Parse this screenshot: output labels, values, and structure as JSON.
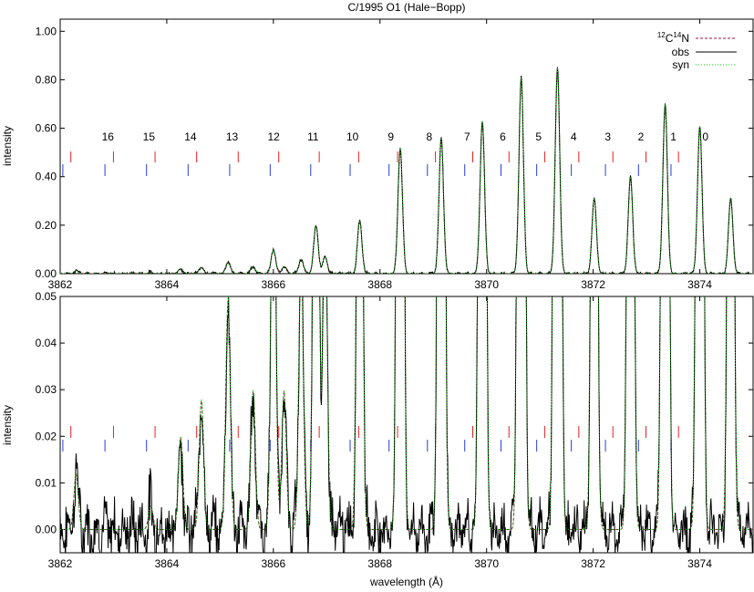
{
  "title": "C/1995 O1 (Hale−Bopp)",
  "legend": {
    "position": "top-right",
    "entries": [
      {
        "label_parts": [
          "12",
          "C",
          "14",
          "N"
        ],
        "color": "#8b1a3c",
        "style": "dashed"
      },
      {
        "label": "obs",
        "color": "#000000",
        "style": "solid"
      },
      {
        "label": "syn",
        "color": "#00cc00",
        "style": "dotted"
      }
    ]
  },
  "chart_data": [
    {
      "type": "line",
      "panel": "top",
      "xlabel": "",
      "ylabel": "intensity",
      "xlim": [
        3862,
        3875
      ],
      "ylim": [
        0,
        1.05
      ],
      "xticks": [
        "3862",
        "3864",
        "3866",
        "3868",
        "3870",
        "3872",
        "3874"
      ],
      "yticks": [
        "0.00",
        "0.20",
        "0.40",
        "0.60",
        "0.80",
        "1.00"
      ],
      "grid": false,
      "line_labels": [
        {
          "text": "16",
          "x": 3862.45
        },
        {
          "text": "15",
          "x": 3863.22
        },
        {
          "text": "14",
          "x": 3864.0
        },
        {
          "text": "13",
          "x": 3864.78
        },
        {
          "text": "12",
          "x": 3865.56
        },
        {
          "text": "11",
          "x": 3866.3
        },
        {
          "text": "10",
          "x": 3867.04
        },
        {
          "text": "9",
          "x": 3867.76
        },
        {
          "text": "8",
          "x": 3868.48
        },
        {
          "text": "7",
          "x": 3869.19
        },
        {
          "text": "6",
          "x": 3869.86
        },
        {
          "text": "5",
          "x": 3870.53
        },
        {
          "text": "4",
          "x": 3871.19
        },
        {
          "text": "3",
          "x": 3871.83
        },
        {
          "text": "2",
          "x": 3872.45
        },
        {
          "text": "1",
          "x": 3873.06
        },
        {
          "text": "0",
          "x": 3873.66
        }
      ],
      "tick_marks": {
        "red": [
          3862.2,
          3863.0,
          3863.78,
          3864.56,
          3865.34,
          3866.1,
          3866.86,
          3867.6,
          3868.33,
          3869.04,
          3869.74,
          3870.42,
          3871.09,
          3871.73,
          3872.37,
          3872.99,
          3873.6
        ],
        "blue": [
          3862.05,
          3862.84,
          3863.62,
          3864.4,
          3865.18,
          3865.94,
          3866.7,
          3867.44,
          3868.17,
          3868.89,
          3869.59,
          3870.27,
          3870.94,
          3871.59,
          3872.23,
          3872.85,
          3873.46
        ]
      },
      "peaks": [
        {
          "x": 3862.3,
          "y": 0.012
        },
        {
          "x": 3863.7,
          "y": 0.005
        },
        {
          "x": 3864.26,
          "y": 0.02
        },
        {
          "x": 3864.65,
          "y": 0.028
        },
        {
          "x": 3865.15,
          "y": 0.05
        },
        {
          "x": 3865.62,
          "y": 0.03
        },
        {
          "x": 3866.0,
          "y": 0.1
        },
        {
          "x": 3866.2,
          "y": 0.03
        },
        {
          "x": 3866.52,
          "y": 0.06
        },
        {
          "x": 3866.8,
          "y": 0.2
        },
        {
          "x": 3866.97,
          "y": 0.07
        },
        {
          "x": 3867.62,
          "y": 0.22
        },
        {
          "x": 3868.38,
          "y": 0.52
        },
        {
          "x": 3869.15,
          "y": 0.56
        },
        {
          "x": 3869.92,
          "y": 0.63
        },
        {
          "x": 3870.65,
          "y": 0.81
        },
        {
          "x": 3871.33,
          "y": 0.85
        },
        {
          "x": 3872.02,
          "y": 0.31
        },
        {
          "x": 3872.7,
          "y": 0.4
        },
        {
          "x": 3873.35,
          "y": 0.7
        },
        {
          "x": 3874.0,
          "y": 0.61
        },
        {
          "x": 3874.58,
          "y": 0.31
        }
      ]
    },
    {
      "type": "line",
      "panel": "bottom",
      "xlabel": "wavelength (Å)",
      "ylabel": "intensity",
      "xlim": [
        3862,
        3875
      ],
      "ylim": [
        -0.005,
        0.05
      ],
      "xticks": [
        "3862",
        "3864",
        "3866",
        "3868",
        "3870",
        "3872",
        "3874"
      ],
      "yticks": [
        "0.00",
        "0.01",
        "0.02",
        "0.03",
        "0.04",
        "0.05"
      ],
      "grid": false,
      "tick_marks": {
        "red": [
          3862.2,
          3863.0,
          3863.78,
          3864.56,
          3865.34,
          3866.1,
          3866.86,
          3867.6,
          3868.33,
          3869.04,
          3869.74,
          3870.42,
          3871.09,
          3871.73,
          3872.37,
          3872.99,
          3873.6
        ],
        "blue": [
          3862.05,
          3862.84,
          3863.62,
          3864.4,
          3865.18,
          3865.94,
          3866.7,
          3867.44,
          3868.17,
          3868.89,
          3869.59,
          3870.27,
          3870.94,
          3871.59,
          3872.23,
          3872.85,
          3873.46
        ]
      }
    }
  ]
}
